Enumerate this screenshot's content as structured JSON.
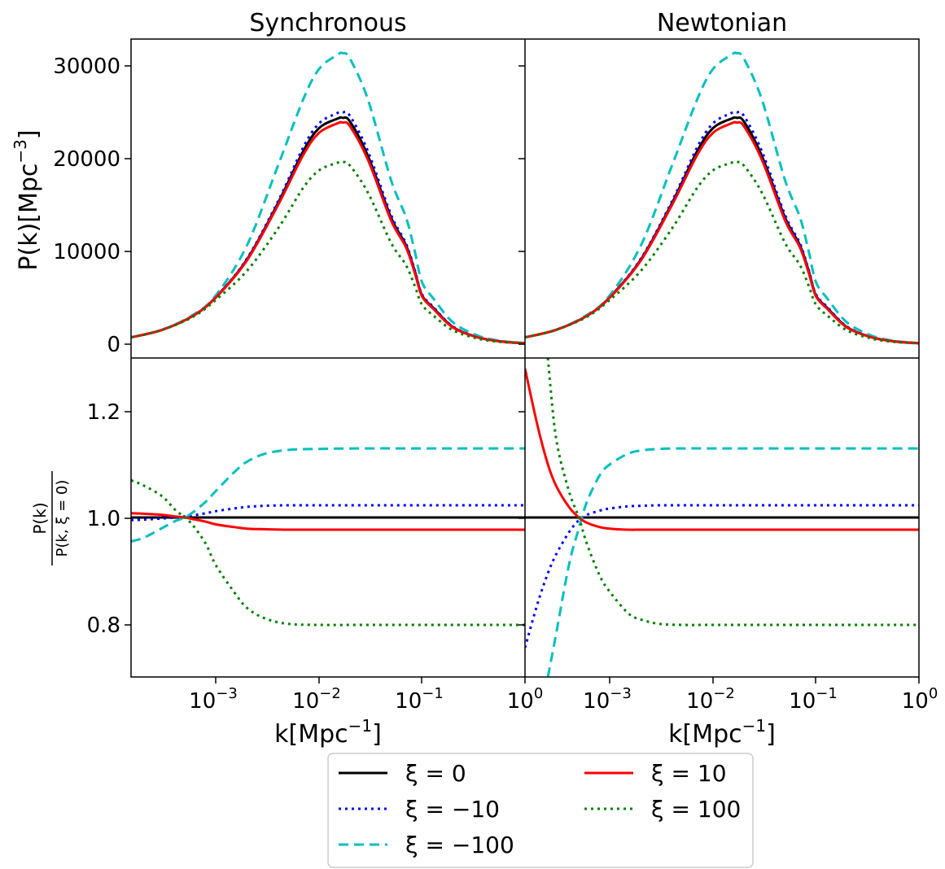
{
  "panels": {
    "synchronous_title": "Synchronous",
    "newtonian_title": "Newtonian"
  },
  "axes": {
    "top_ylabel": {
      "main": "P(k)[Mpc",
      "sup": "−3",
      "end": "]"
    },
    "bottom_ylabel": {
      "num": "P(k)",
      "den": "P(k, ξ = 0)"
    },
    "xlabel": {
      "main": "k[Mpc",
      "sup": "−1",
      "end": "]"
    },
    "top_yticks": [
      "0",
      "10000",
      "20000",
      "30000"
    ],
    "bottom_yticks": [
      "0.8",
      "1.0",
      "1.2"
    ],
    "xticks": [
      {
        "base": "10",
        "exp": "−3"
      },
      {
        "base": "10",
        "exp": "−2"
      },
      {
        "base": "10",
        "exp": "−1"
      },
      {
        "base": "10",
        "exp": "0"
      }
    ]
  },
  "legend": [
    {
      "label": "ξ = 0",
      "color": "#000000",
      "dash": "solid"
    },
    {
      "label": "ξ = −10",
      "color": "#0000ff",
      "dash": "dotted"
    },
    {
      "label": "ξ = −100",
      "color": "#00bfbf",
      "dash": "dashed"
    },
    {
      "label": "ξ = 10",
      "color": "#ff0000",
      "dash": "solid"
    },
    {
      "label": "ξ = 100",
      "color": "#008000",
      "dash": "dotted"
    }
  ],
  "chart_data": [
    {
      "type": "line",
      "title": "Synchronous",
      "xlabel": "k[Mpc⁻¹]",
      "ylabel": "P(k)[Mpc⁻³]",
      "xscale": "log",
      "xlim": [
        0.00015,
        1.0
      ],
      "ylim": [
        -1500,
        32500
      ],
      "x": [
        0.00015,
        0.0003,
        0.0006,
        0.001,
        0.002,
        0.004,
        0.007,
        0.01,
        0.015,
        0.017,
        0.02,
        0.03,
        0.05,
        0.07,
        0.085,
        0.1,
        0.13,
        0.2,
        0.35,
        0.6,
        1.0
      ],
      "series": [
        {
          "name": "ξ = 0",
          "color": "#000000",
          "dash": "solid",
          "values": [
            700,
            1500,
            3000,
            5000,
            9000,
            15000,
            20500,
            23000,
            24000,
            24100,
            23700,
            20000,
            13500,
            10500,
            7800,
            5200,
            3800,
            1800,
            700,
            250,
            80
          ]
        },
        {
          "name": "ξ = −10",
          "color": "#0000ff",
          "dash": "dotted",
          "values": [
            700,
            1500,
            3000,
            5000,
            9100,
            15200,
            20900,
            23500,
            24600,
            24700,
            24300,
            20500,
            13800,
            10700,
            7900,
            5300,
            3900,
            1850,
            720,
            255,
            82
          ]
        },
        {
          "name": "ξ = −100",
          "color": "#00bfbf",
          "dash": "dashed",
          "values": [
            700,
            1500,
            3100,
            5200,
            10500,
            19000,
            26000,
            29300,
            30800,
            31000,
            30400,
            26000,
            17500,
            13500,
            9900,
            6600,
            4800,
            2300,
            880,
            300,
            100
          ]
        },
        {
          "name": "ξ = 10",
          "color": "#ff0000",
          "dash": "solid",
          "values": [
            700,
            1500,
            3000,
            4950,
            8900,
            14800,
            20100,
            22500,
            23500,
            23600,
            23200,
            19600,
            13200,
            10300,
            7600,
            5100,
            3700,
            1750,
            690,
            245,
            78
          ]
        },
        {
          "name": "ξ = 100",
          "color": "#008000",
          "dash": "dotted",
          "values": [
            700,
            1500,
            2900,
            4700,
            7800,
            12300,
            16600,
            18500,
            19300,
            19400,
            19000,
            16100,
            10800,
            8400,
            6200,
            4200,
            3000,
            1450,
            560,
            200,
            64
          ]
        }
      ]
    },
    {
      "type": "line",
      "title": "Newtonian",
      "xlabel": "k[Mpc⁻¹]",
      "xscale": "log",
      "xlim": [
        0.00015,
        1.0
      ],
      "ylim": [
        -1500,
        32500
      ],
      "x": [
        0.00015,
        0.0003,
        0.0006,
        0.001,
        0.002,
        0.004,
        0.007,
        0.01,
        0.015,
        0.017,
        0.02,
        0.03,
        0.05,
        0.07,
        0.085,
        0.1,
        0.13,
        0.2,
        0.35,
        0.6,
        1.0
      ],
      "series": [
        {
          "name": "ξ = 0",
          "color": "#000000",
          "dash": "solid",
          "values": [
            700,
            1500,
            3000,
            5000,
            9000,
            15000,
            20500,
            23000,
            24000,
            24100,
            23700,
            20000,
            13500,
            10500,
            7800,
            5200,
            3800,
            1800,
            700,
            250,
            80
          ]
        },
        {
          "name": "ξ = −10",
          "color": "#0000ff",
          "dash": "dotted",
          "values": [
            700,
            1500,
            3000,
            5000,
            9100,
            15200,
            20900,
            23500,
            24600,
            24700,
            24300,
            20500,
            13800,
            10700,
            7900,
            5300,
            3900,
            1850,
            720,
            255,
            82
          ]
        },
        {
          "name": "ξ = −100",
          "color": "#00bfbf",
          "dash": "dashed",
          "values": [
            700,
            1500,
            3100,
            5200,
            10500,
            19000,
            26000,
            29300,
            30800,
            31000,
            30400,
            26000,
            17500,
            13500,
            9900,
            6600,
            4800,
            2300,
            880,
            300,
            100
          ]
        },
        {
          "name": "ξ = 10",
          "color": "#ff0000",
          "dash": "solid",
          "values": [
            700,
            1500,
            3000,
            4950,
            8900,
            14800,
            20100,
            22500,
            23500,
            23600,
            23200,
            19600,
            13200,
            10300,
            7600,
            5100,
            3700,
            1750,
            690,
            245,
            78
          ]
        },
        {
          "name": "ξ = 100",
          "color": "#008000",
          "dash": "dotted",
          "values": [
            700,
            1500,
            2900,
            4700,
            7800,
            12300,
            16600,
            18500,
            19300,
            19400,
            19000,
            16100,
            10800,
            8400,
            6200,
            4200,
            3000,
            1450,
            560,
            200,
            64
          ]
        }
      ]
    },
    {
      "type": "line",
      "xlabel": "k[Mpc⁻¹]",
      "ylabel": "P(k) / P(k, ξ = 0)",
      "xscale": "log",
      "xlim": [
        0.00015,
        1.0
      ],
      "ylim": [
        0.7,
        1.3
      ],
      "x": [
        0.00015,
        0.0002,
        0.0003,
        0.0004,
        0.0005,
        0.0006,
        0.0008,
        0.001,
        0.0015,
        0.002,
        0.003,
        0.005,
        0.01,
        0.03,
        0.1,
        1.0
      ],
      "series": [
        {
          "name": "ξ = 0",
          "color": "#000000",
          "dash": "solid",
          "values": [
            1.0,
            1.0,
            1.0,
            1.0,
            1.0,
            1.0,
            1.0,
            1.0,
            1.0,
            1.0,
            1.0,
            1.0,
            1.0,
            1.0,
            1.0,
            1.0
          ]
        },
        {
          "name": "ξ = −10",
          "color": "#0000ff",
          "dash": "dotted",
          "values": [
            0.995,
            0.996,
            0.998,
            1.0,
            1.002,
            1.004,
            1.008,
            1.012,
            1.017,
            1.02,
            1.022,
            1.023,
            1.023,
            1.023,
            1.023,
            1.023
          ]
        },
        {
          "name": "ξ = −100",
          "color": "#00bfbf",
          "dash": "dashed",
          "values": [
            0.955,
            0.962,
            0.98,
            0.993,
            1.0,
            1.01,
            1.03,
            1.05,
            1.085,
            1.105,
            1.12,
            1.127,
            1.129,
            1.13,
            1.13,
            1.13
          ]
        },
        {
          "name": "ξ = 10",
          "color": "#ff0000",
          "dash": "solid",
          "values": [
            1.008,
            1.007,
            1.005,
            1.002,
            1.0,
            0.997,
            0.992,
            0.987,
            0.982,
            0.979,
            0.978,
            0.977,
            0.977,
            0.977,
            0.977,
            0.977
          ]
        },
        {
          "name": "ξ = 100",
          "color": "#008000",
          "dash": "dotted",
          "values": [
            1.07,
            1.06,
            1.04,
            1.015,
            1.0,
            0.985,
            0.95,
            0.91,
            0.86,
            0.83,
            0.81,
            0.8,
            0.798,
            0.798,
            0.798,
            0.798
          ]
        }
      ]
    },
    {
      "type": "line",
      "xlabel": "k[Mpc⁻¹]",
      "xscale": "log",
      "xlim": [
        0.00015,
        1.0
      ],
      "ylim": [
        0.7,
        1.3
      ],
      "x": [
        0.00015,
        0.0002,
        0.00025,
        0.0003,
        0.0004,
        0.0005,
        0.0006,
        0.0008,
        0.001,
        0.0015,
        0.002,
        0.003,
        0.005,
        0.01,
        0.03,
        0.1,
        1.0
      ],
      "series": [
        {
          "name": "ξ = 0",
          "color": "#000000",
          "dash": "solid",
          "values": [
            1.0,
            1.0,
            1.0,
            1.0,
            1.0,
            1.0,
            1.0,
            1.0,
            1.0,
            1.0,
            1.0,
            1.0,
            1.0,
            1.0,
            1.0,
            1.0,
            1.0
          ]
        },
        {
          "name": "ξ = −10",
          "color": "#0000ff",
          "dash": "dotted",
          "values": [
            0.755,
            0.84,
            0.895,
            0.93,
            0.972,
            0.995,
            1.005,
            1.013,
            1.017,
            1.021,
            1.022,
            1.023,
            1.023,
            1.023,
            1.023,
            1.023,
            1.023
          ]
        },
        {
          "name": "ξ = −100",
          "color": "#00bfbf",
          "dash": "dashed",
          "values": [
            null,
            null,
            0.7,
            0.78,
            0.91,
            0.98,
            1.03,
            1.08,
            1.1,
            1.12,
            1.126,
            1.129,
            1.13,
            1.13,
            1.13,
            1.13,
            1.13
          ]
        },
        {
          "name": "ξ = 10",
          "color": "#ff0000",
          "dash": "solid",
          "values": [
            1.28,
            1.17,
            1.1,
            1.06,
            1.02,
            1.0,
            0.99,
            0.982,
            0.979,
            0.977,
            0.977,
            0.977,
            0.977,
            0.977,
            0.977,
            0.977,
            0.977
          ]
        },
        {
          "name": "ξ = 100",
          "color": "#008000",
          "dash": "dotted",
          "values": [
            null,
            null,
            1.3,
            1.15,
            1.05,
            1.0,
            0.95,
            0.89,
            0.86,
            0.82,
            0.808,
            0.8,
            0.798,
            0.798,
            0.798,
            0.798,
            0.798
          ]
        }
      ]
    }
  ]
}
